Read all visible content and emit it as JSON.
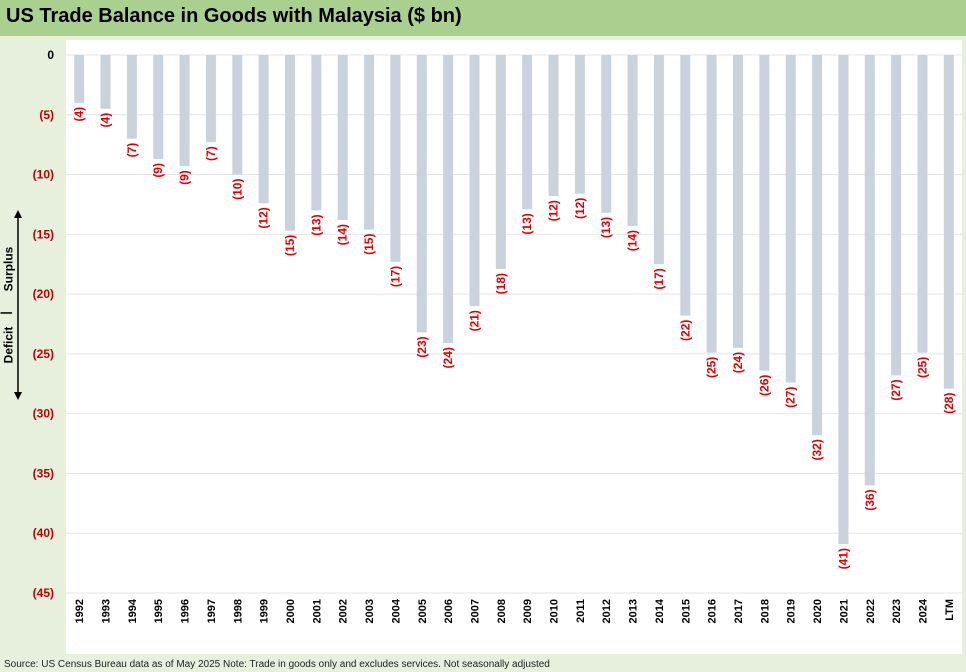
{
  "title": "US Trade Balance in Goods with Malaysia ($ bn)",
  "source": "Source: US Census Bureau data as of May 2025 Note: Trade in goods only and excludes services. Not seasonally adjusted",
  "side_labels": {
    "surplus": "Surplus",
    "deficit": "Deficit",
    "divider": "|"
  },
  "colors": {
    "title_bg": "#a9d08e",
    "page_bg": "#e6f0dc",
    "bar": "#c9d3de",
    "axis_label": "#c00000",
    "data_label": "#e00000"
  },
  "chart_data": {
    "type": "bar",
    "title": "US Trade Balance in Goods with Malaysia ($ bn)",
    "xlabel": "",
    "ylabel": "",
    "ylim": [
      -45,
      0
    ],
    "yticks": [
      0,
      -5,
      -10,
      -15,
      -20,
      -25,
      -30,
      -35,
      -40,
      -45
    ],
    "ytick_labels": [
      "0",
      "(5)",
      "(10)",
      "(15)",
      "(20)",
      "(25)",
      "(30)",
      "(35)",
      "(40)",
      "(45)"
    ],
    "categories": [
      "1992",
      "1993",
      "1994",
      "1995",
      "1996",
      "1997",
      "1998",
      "1999",
      "2000",
      "2001",
      "2002",
      "2003",
      "2004",
      "2005",
      "2006",
      "2007",
      "2008",
      "2009",
      "2010",
      "2011",
      "2012",
      "2013",
      "2014",
      "2015",
      "2016",
      "2017",
      "2018",
      "2019",
      "2020",
      "2021",
      "2022",
      "2023",
      "2024",
      "LTM"
    ],
    "values": [
      -4.0,
      -4.5,
      -7.0,
      -8.7,
      -9.3,
      -7.3,
      -10.0,
      -12.4,
      -14.7,
      -13.0,
      -13.8,
      -14.6,
      -17.3,
      -23.2,
      -24.1,
      -21.0,
      -17.9,
      -12.9,
      -11.8,
      -11.6,
      -13.2,
      -14.3,
      -17.5,
      -21.8,
      -24.9,
      -24.5,
      -26.4,
      -27.4,
      -31.8,
      -40.9,
      -36.0,
      -26.8,
      -24.9,
      -27.9
    ],
    "data_labels": [
      "(4)",
      "(4)",
      "(7)",
      "(9)",
      "(9)",
      "(7)",
      "(10)",
      "(12)",
      "(15)",
      "(13)",
      "(14)",
      "(15)",
      "(17)",
      "(23)",
      "(24)",
      "(21)",
      "(18)",
      "(13)",
      "(12)",
      "(12)",
      "(13)",
      "(14)",
      "(17)",
      "(22)",
      "(25)",
      "(24)",
      "(26)",
      "(27)",
      "(32)",
      "(41)",
      "(36)",
      "(27)",
      "(25)",
      "(28)"
    ]
  }
}
